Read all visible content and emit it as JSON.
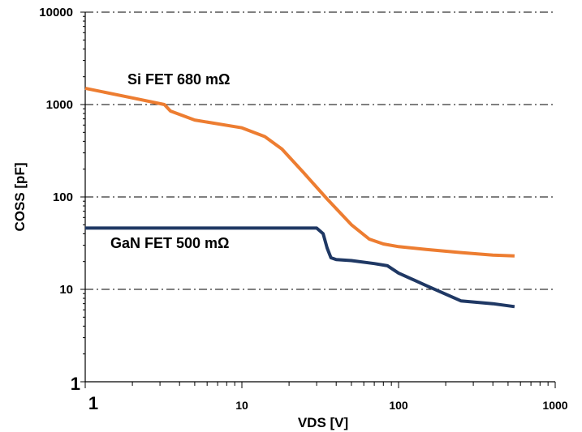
{
  "chart_data": {
    "type": "line",
    "xscale": "log",
    "yscale": "log",
    "xlim": [
      1,
      1000
    ],
    "ylim": [
      1,
      10000
    ],
    "xlabel": "VDS [V]",
    "ylabel": "COSS [pF]",
    "x_ticks": [
      "1",
      "10",
      "100",
      "1000"
    ],
    "y_ticks": [
      "1",
      "10",
      "100",
      "1000",
      "10000"
    ],
    "grid": "horizontal dash-dot",
    "series": [
      {
        "name": "Si FET 680 mΩ",
        "color": "#ED7D31",
        "x": [
          1,
          2,
          3.2,
          3.5,
          5,
          10,
          14,
          18,
          25,
          35,
          50,
          65,
          80,
          100,
          150,
          250,
          400,
          550
        ],
        "y": [
          1500,
          1180,
          1000,
          850,
          680,
          560,
          450,
          330,
          180,
          95,
          50,
          35,
          31,
          29,
          27,
          25,
          23.5,
          23
        ]
      },
      {
        "name": "GaN FET 500 mΩ",
        "color": "#1F3864",
        "x": [
          1,
          10,
          30,
          33,
          35,
          37,
          40,
          50,
          70,
          85,
          100,
          150,
          250,
          400,
          550
        ],
        "y": [
          46,
          46,
          46,
          40,
          28,
          22,
          21,
          20.5,
          19,
          18,
          15,
          11,
          7.5,
          7,
          6.5
        ]
      }
    ]
  }
}
